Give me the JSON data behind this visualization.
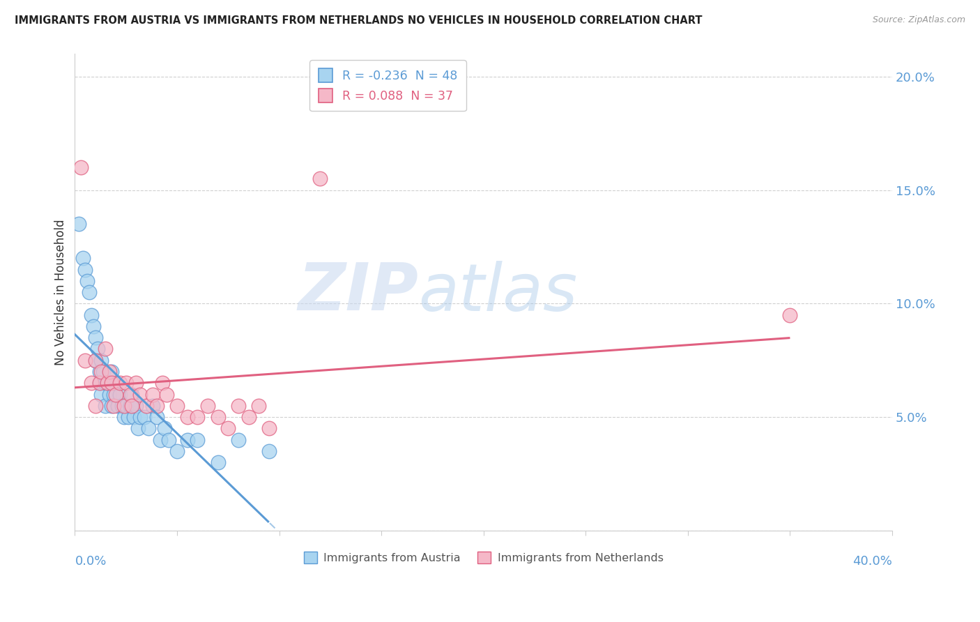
{
  "title": "IMMIGRANTS FROM AUSTRIA VS IMMIGRANTS FROM NETHERLANDS NO VEHICLES IN HOUSEHOLD CORRELATION CHART",
  "source": "Source: ZipAtlas.com",
  "ylabel": "No Vehicles in Household",
  "legend_label_austria": "Immigrants from Austria",
  "legend_label_netherlands": "Immigrants from Netherlands",
  "watermark_zip": "ZIP",
  "watermark_atlas": "atlas",
  "austria_R": -0.236,
  "austria_N": 48,
  "netherlands_R": 0.088,
  "netherlands_N": 37,
  "austria_color": "#A8D4F0",
  "netherlands_color": "#F5B8C8",
  "austria_line_color": "#5B9BD5",
  "netherlands_line_color": "#E06080",
  "tick_color": "#5B9BD5",
  "xlim": [
    0.0,
    0.4
  ],
  "ylim": [
    0.0,
    0.21
  ],
  "x_ticks": [
    0.0,
    0.05,
    0.1,
    0.15,
    0.2,
    0.25,
    0.3,
    0.35,
    0.4
  ],
  "y_ticks": [
    0.0,
    0.05,
    0.1,
    0.15,
    0.2
  ],
  "y_tick_labels": [
    "",
    "5.0%",
    "10.0%",
    "15.0%",
    "20.0%"
  ],
  "austria_x": [
    0.002,
    0.004,
    0.005,
    0.006,
    0.007,
    0.008,
    0.009,
    0.01,
    0.01,
    0.011,
    0.012,
    0.012,
    0.013,
    0.013,
    0.014,
    0.015,
    0.015,
    0.016,
    0.017,
    0.018,
    0.018,
    0.019,
    0.02,
    0.021,
    0.022,
    0.023,
    0.024,
    0.025,
    0.026,
    0.027,
    0.028,
    0.029,
    0.03,
    0.031,
    0.032,
    0.034,
    0.036,
    0.038,
    0.04,
    0.042,
    0.044,
    0.046,
    0.05,
    0.055,
    0.06,
    0.07,
    0.08,
    0.095
  ],
  "austria_y": [
    0.135,
    0.12,
    0.115,
    0.11,
    0.105,
    0.095,
    0.09,
    0.085,
    0.075,
    0.08,
    0.07,
    0.065,
    0.075,
    0.06,
    0.07,
    0.065,
    0.055,
    0.065,
    0.06,
    0.055,
    0.07,
    0.06,
    0.065,
    0.055,
    0.06,
    0.055,
    0.05,
    0.055,
    0.05,
    0.055,
    0.06,
    0.05,
    0.055,
    0.045,
    0.05,
    0.05,
    0.045,
    0.055,
    0.05,
    0.04,
    0.045,
    0.04,
    0.035,
    0.04,
    0.04,
    0.03,
    0.04,
    0.035
  ],
  "netherlands_x": [
    0.003,
    0.005,
    0.008,
    0.01,
    0.01,
    0.012,
    0.013,
    0.015,
    0.016,
    0.017,
    0.018,
    0.019,
    0.02,
    0.022,
    0.024,
    0.025,
    0.027,
    0.028,
    0.03,
    0.032,
    0.035,
    0.038,
    0.04,
    0.043,
    0.045,
    0.05,
    0.055,
    0.06,
    0.065,
    0.07,
    0.075,
    0.08,
    0.085,
    0.09,
    0.095,
    0.12,
    0.35
  ],
  "netherlands_y": [
    0.16,
    0.075,
    0.065,
    0.075,
    0.055,
    0.065,
    0.07,
    0.08,
    0.065,
    0.07,
    0.065,
    0.055,
    0.06,
    0.065,
    0.055,
    0.065,
    0.06,
    0.055,
    0.065,
    0.06,
    0.055,
    0.06,
    0.055,
    0.065,
    0.06,
    0.055,
    0.05,
    0.05,
    0.055,
    0.05,
    0.045,
    0.055,
    0.05,
    0.055,
    0.045,
    0.155,
    0.095
  ]
}
